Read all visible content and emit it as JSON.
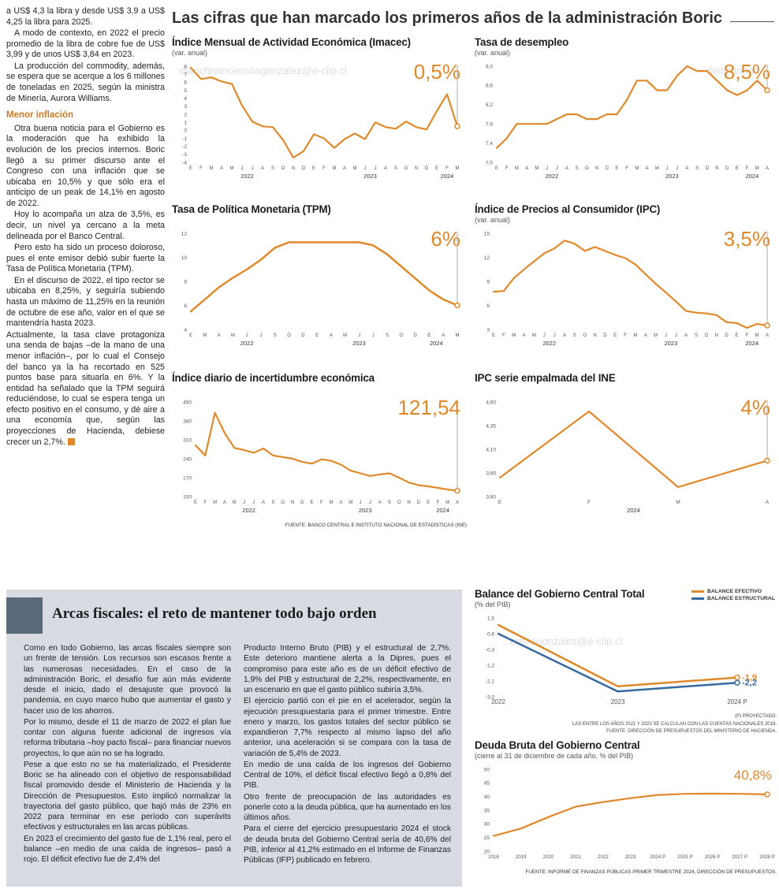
{
  "colors": {
    "orange": "#E0892B",
    "orange_dark": "#C97B22",
    "blue": "#35699F",
    "panel_bg": "#D8DCE2",
    "accent_bar": "#5A6A7A"
  },
  "watermarks": [
    "diariofinanciero#agonzalez@e-clip.cl",
    "diariofinanc",
    "...ero#agonzalez@e-clip.cl"
  ],
  "headline": {
    "text": "Las cifras que han marcado los primeros años de la administración Boric"
  },
  "left_column": {
    "paragraphs": [
      "a US$ 4,3 la libra y desde US$ 3,9 a US$ 4,25 la libra para 2025.",
      "A modo de contexto, en 2022 el precio promedio de la libra de cobre fue de US$ 3,99 y de unos US$ 3,84 en 2023.",
      "La producción del commodity, además, se espera que se acerque a los 6 millones de toneladas en 2025, según la ministra de Minería, Aurora Williams."
    ],
    "subhead": "Menor inflación",
    "paragraphs2": [
      "Otra buena noticia para el Gobierno es la moderación que ha exhibido la evolución de los precios internos. Boric llegó a su primer discurso ante el Congreso con una inflación que se ubicaba en 10,5% y que sólo era el anticipo de un peak de 14,1% en agosto de 2022.",
      "Hoy lo acompaña un alza de 3,5%, es decir, un nivel ya cercano a la meta delineada por el Banco Central.",
      "Pero esto ha sido un proceso doloroso, pues el ente emisor debió subir fuerte la Tasa de Política Monetaria (TPM).",
      "En el discurso de 2022, el tipo rector se ubicaba en 8,25%, y seguiría subiendo hasta un máximo de 11,25% en la reunión de octubre de ese año, valor en el que se mantendría hasta 2023.",
      "Actualmente, la tasa clave protagoniza una senda de bajas –de la mano de una menor inflación–, por lo cual el Consejo del banco ya la ha recortado en 525 puntos base para situarla en 6%. Y la entidad ha señalado que la TPM seguirá reduciéndose, lo cual se espera tenga un efecto positivo en el consumo, y dé aire a una economía que, según las proyecciones de Hacienda, debiese crecer un 2,7%."
    ]
  },
  "chart_data": {
    "imacec": {
      "type": "line",
      "title": "Índice Mensual de Actividad Económica (Imacec)",
      "subtitle": "(var. anual)",
      "value_label": "0,5%",
      "ymin": -4,
      "ymax": 8,
      "yticks": [
        "8",
        "7",
        "6",
        "5",
        "4",
        "3",
        "2",
        "1",
        "0",
        "-1",
        "-2",
        "-3",
        "-4"
      ],
      "xlabels": [
        "E",
        "F",
        "M",
        "A",
        "M",
        "J",
        "J",
        "A",
        "S",
        "O",
        "N",
        "D",
        "E",
        "F",
        "M",
        "A",
        "M",
        "J",
        "J",
        "A",
        "S",
        "O",
        "N",
        "D",
        "E",
        "F",
        "M"
      ],
      "years": [
        {
          "text": "2022",
          "at": 5.5
        },
        {
          "text": "2023",
          "at": 17.5
        },
        {
          "text": "2024",
          "at": 25
        }
      ],
      "values": [
        7.8,
        6.4,
        6.6,
        6.1,
        5.8,
        3.1,
        1.1,
        0.5,
        0.4,
        -1.2,
        -3.4,
        -2.6,
        -0.5,
        -1.0,
        -2.2,
        -1.1,
        -0.4,
        -1.1,
        1.0,
        0.4,
        0.2,
        1.1,
        0.4,
        0.1,
        2.4,
        4.5,
        0.5
      ]
    },
    "desempleo": {
      "type": "line",
      "title": "Tasa de desempleo",
      "subtitle": "(var. anual)",
      "value_label": "8,5%",
      "ymin": 7.0,
      "ymax": 9.0,
      "yticks": [
        "9,0",
        "8,6",
        "8,2",
        "7,8",
        "7,4",
        "7,0"
      ],
      "xlabels": [
        "E",
        "F",
        "M",
        "A",
        "M",
        "J",
        "J",
        "A",
        "S",
        "O",
        "N",
        "D",
        "E",
        "F",
        "M",
        "A",
        "M",
        "J",
        "J",
        "A",
        "S",
        "O",
        "N",
        "D",
        "E",
        "F",
        "M",
        "A"
      ],
      "years": [
        {
          "text": "2022",
          "at": 5.5
        },
        {
          "text": "2023",
          "at": 17.5
        },
        {
          "text": "2024",
          "at": 25.5
        }
      ],
      "values": [
        7.3,
        7.5,
        7.8,
        7.8,
        7.8,
        7.8,
        7.9,
        8.0,
        8.0,
        7.9,
        7.9,
        8.0,
        8.0,
        8.3,
        8.7,
        8.7,
        8.5,
        8.5,
        8.8,
        9.0,
        8.9,
        8.9,
        8.7,
        8.5,
        8.4,
        8.5,
        8.7,
        8.5
      ]
    },
    "tpm": {
      "type": "line",
      "title": "Tasa de Política Monetaria (TPM)",
      "subtitle": "",
      "value_label": "6%",
      "ymin": 4,
      "ymax": 12,
      "yticks": [
        "12",
        "10",
        "8",
        "6",
        "4"
      ],
      "xlabels": [
        "E",
        "M",
        "A",
        "M",
        "J",
        "J",
        "S",
        "O",
        "D",
        "E",
        "A",
        "M",
        "J",
        "J",
        "S",
        "O",
        "D",
        "E",
        "A",
        "M"
      ],
      "years": [
        {
          "text": "2022",
          "at": 4
        },
        {
          "text": "2023",
          "at": 12
        },
        {
          "text": "2024",
          "at": 17.5
        }
      ],
      "values": [
        5.5,
        6.5,
        7.5,
        8.3,
        9.0,
        9.8,
        10.8,
        11.25,
        11.25,
        11.25,
        11.25,
        11.25,
        11.25,
        11.0,
        10.25,
        9.25,
        8.25,
        7.25,
        6.5,
        6.0
      ]
    },
    "ipc": {
      "type": "line",
      "title": "Índice de Precios al Consumidor (IPC)",
      "subtitle": "(var. anual)",
      "value_label": "3,5%",
      "ymin": 3,
      "ymax": 15,
      "yticks": [
        "15",
        "12",
        "9",
        "6",
        "3"
      ],
      "xlabels": [
        "E",
        "F",
        "M",
        "A",
        "M",
        "J",
        "J",
        "A",
        "S",
        "O",
        "N",
        "D",
        "E",
        "F",
        "M",
        "A",
        "M",
        "J",
        "J",
        "A",
        "S",
        "O",
        "N",
        "D",
        "E",
        "F",
        "M",
        "A"
      ],
      "years": [
        {
          "text": "2022",
          "at": 5.5
        },
        {
          "text": "2023",
          "at": 17.5
        },
        {
          "text": "2024",
          "at": 25.5
        }
      ],
      "values": [
        7.7,
        7.8,
        9.4,
        10.5,
        11.5,
        12.5,
        13.1,
        14.1,
        13.7,
        12.8,
        13.3,
        12.8,
        12.3,
        11.9,
        11.1,
        9.9,
        8.7,
        7.6,
        6.5,
        5.3,
        5.1,
        5.0,
        4.8,
        3.9,
        3.8,
        3.2,
        3.7,
        3.5
      ]
    },
    "incertidumbre": {
      "type": "line",
      "title": "Índice diario de incertidumbre económica",
      "subtitle": "",
      "value_label": "121,54",
      "ymin": 100,
      "ymax": 450,
      "yticks": [
        "450",
        "380",
        "310",
        "240",
        "170",
        "100"
      ],
      "xlabels": [
        "E",
        "F",
        "M",
        "A",
        "M",
        "J",
        "J",
        "A",
        "S",
        "O",
        "N",
        "D",
        "E",
        "F",
        "M",
        "A",
        "M",
        "J",
        "J",
        "A",
        "S",
        "O",
        "N",
        "D",
        "E",
        "F",
        "M",
        "A"
      ],
      "years": [
        {
          "text": "2022",
          "at": 5.5
        },
        {
          "text": "2023",
          "at": 17.5
        },
        {
          "text": "2024",
          "at": 25.5
        }
      ],
      "values": [
        290,
        252,
        410,
        335,
        280,
        272,
        262,
        278,
        252,
        246,
        240,
        228,
        222,
        238,
        232,
        218,
        196,
        186,
        176,
        182,
        186,
        170,
        152,
        142,
        138,
        132,
        126,
        121.54
      ],
      "source": "FUENTE: BANCO CENTRAL E INSTITUTO NACIONAL DE ESTADÍSTICAS (INE)"
    },
    "ipc_ine": {
      "type": "line",
      "title": "IPC serie empalmada del INE",
      "subtitle": "",
      "value_label": "4%",
      "ymin": 3.6,
      "ymax": 4.6,
      "yticks": [
        "4,60",
        "4,35",
        "4,10",
        "3,85",
        "3,60"
      ],
      "xlabels": [
        "E",
        "F",
        "M",
        "A"
      ],
      "years": [
        {
          "text": "2024",
          "at": 1.5
        }
      ],
      "values": [
        3.8,
        4.5,
        3.7,
        3.98
      ]
    },
    "balance": {
      "type": "line",
      "title": "Balance del Gobierno Central Total",
      "subtitle": "(% del PIB)",
      "legend": [
        "BALANCE EFECTIVO",
        "BALANCE ESTRUCTURAL"
      ],
      "ymin": -3.0,
      "ymax": 1.5,
      "yticks": [
        "1,5",
        "0,6",
        "-0,3",
        "-1,2",
        "-2,1",
        "-3,0"
      ],
      "xlabels": [
        "2022",
        "2023",
        "2024 P"
      ],
      "series": [
        {
          "name": "BALANCE EFECTIVO",
          "color": "#E0892B",
          "end_label": "-1,9",
          "values": [
            1.1,
            -2.4,
            -1.9
          ]
        },
        {
          "name": "BALANCE ESTRUCTURAL",
          "color": "#35699F",
          "end_label": "-2,2",
          "values": [
            0.6,
            -2.7,
            -2.2
          ]
        }
      ],
      "footnotes": [
        "(P) PROYECTADO.",
        "LAS ENTRE LOS AÑOS 2021 Y 2023 SE CALCULAN CON LAS CUENTAS NACIONALES 2018.",
        "FUENTE: DIRECCIÓN DE PRESUPUESTOS DEL MINISTERIO DE HACIENDA."
      ]
    },
    "deuda": {
      "type": "line",
      "title": "Deuda Bruta del Gobierno Central",
      "subtitle": "(cierre al 31 de diciembre de cada año, % del PIB)",
      "value_label": "40,8%",
      "vline": false,
      "ymin": 20,
      "ymax": 50,
      "yticks": [
        "50",
        "45",
        "40",
        "35",
        "30",
        "25",
        "20"
      ],
      "xlabels": [
        "2018",
        "2019",
        "2020",
        "2021",
        "2022",
        "2023",
        "2024 P",
        "2025 P",
        "2026 P",
        "2027 P",
        "2028 P"
      ],
      "years": [],
      "values": [
        25.6,
        28.3,
        32.5,
        36.3,
        38.0,
        39.4,
        40.6,
        41.0,
        41.1,
        41.0,
        40.8
      ],
      "source": "FUENTE: INFORME DE FINANZAS PÚBLICAS PRIMER TRIMESTRE 2024, DIRECCIÓN DE PRESUPUESTOS."
    }
  },
  "fiscal": {
    "heading": "Arcas fiscales: el reto de mantener todo bajo orden",
    "col1": [
      "Como en todo Gobierno, las arcas fiscales siempre son un frente de tensión. Los recursos son escasos frente a las numerosas necesidades. En el caso de la administración Boric, el desafío fue aún más evidente desde el inicio, dado el desajuste que provocó la pandemia, en cuyo marco hubo que aumentar el gasto y hacer uso de los ahorros.",
      "Por lo mismo, desde el 11 de marzo de 2022 el plan fue contar con alguna fuente adicional de ingresos vía reforma tributaria –hoy pacto fiscal– para financiar nuevos proyectos, lo que aún no se ha logrado.",
      "Pese a que esto no se ha materializado, el Presidente Boric se ha alineado con el objetivo de responsabilidad fiscal promovido desde el Ministerio de Hacienda y la Dirección de Presupuestos. Esto implicó normalizar la trayectoria del gasto público, que bajó más de 23% en 2022 para terminar en ese período con superávits efectivos y estructurales en las arcas públicas.",
      "En 2023 el crecimiento del gasto fue de 1,1% real, pero el balance –en medio de una caída de ingresos– pasó a rojo. El déficit efectivo fue de 2,4% del"
    ],
    "col2": [
      "Producto Interno Bruto (PIB) y el estructural de 2,7%. Este deterioro mantiene alerta a la Dipres, pues el compromiso para este año es de un déficit efectivo de 1,9% del PIB y estructural de 2,2%, respectivamente, en un escenario en que el gasto público subiría 3,5%.",
      "El ejercicio partió con el pie en el acelerador, según la ejecución presupuestaria para el primer trimestre. Entre enero y marzo, los gastos totales del sector público se expandieron 7,7% respecto al mismo lapso del año anterior, una aceleración si se compara con la tasa de variación de 5,4% de 2023.",
      "En medio de una caída de los ingresos del Gobierno Central de 10%, el déficit fiscal efectivo llegó a 0,8% del PIB.",
      "Otro frente de preocupación de las autoridades es ponerle coto a la deuda pública, que ha aumentado en los últimos años.",
      "Para el cierre del ejercicio presupuestario 2024 el stock de deuda bruta del Gobierno Central sería de 40,6% del PIB, inferior al 41,2% estimado en el Informe de Finanzas Públicas (IFP) publicado en febrero."
    ]
  }
}
